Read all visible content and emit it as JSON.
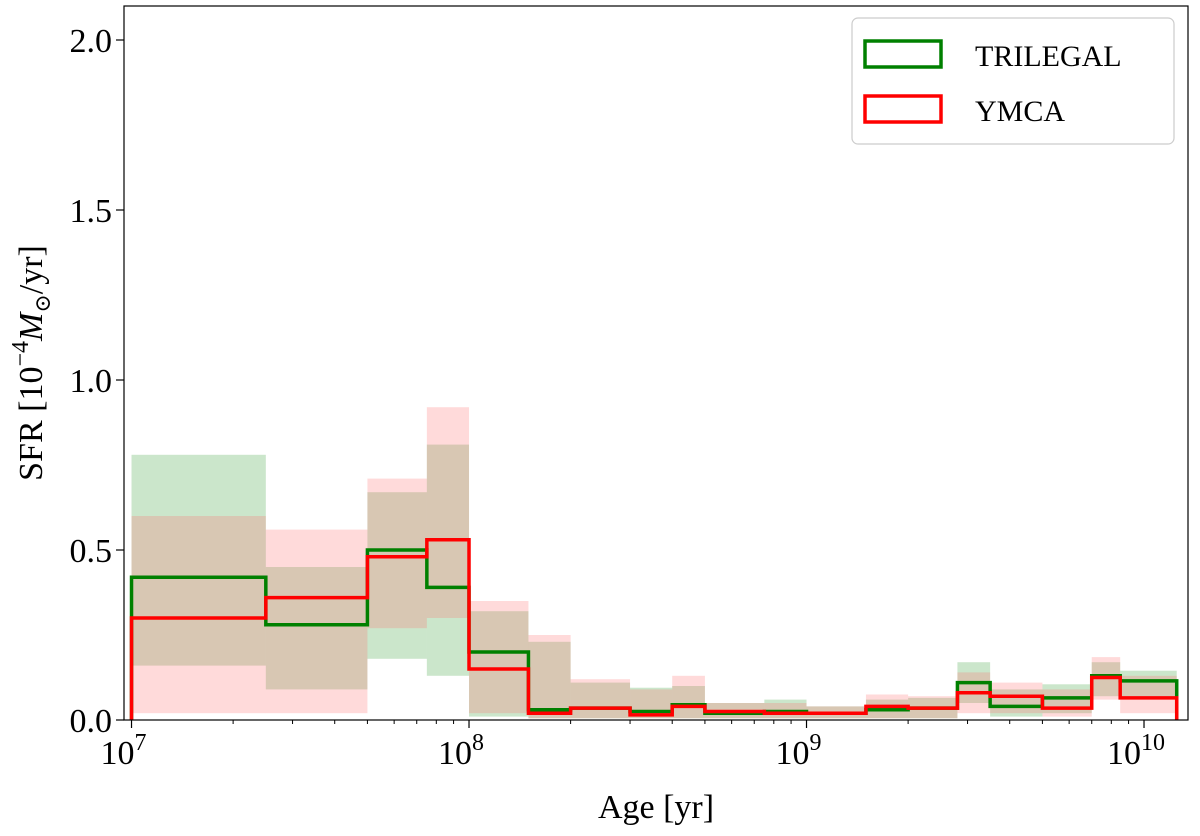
{
  "chart_data": {
    "type": "step",
    "xscale": "log",
    "xlim": [
      9500000,
      13500000000
    ],
    "ylim": [
      0,
      2.1
    ],
    "xlabel": "Age [yr]",
    "ylabel_prefix": "SFR [10",
    "ylabel_exp": "−4",
    "ylabel_mass": "M",
    "ylabel_sun": "⊙",
    "ylabel_suffix": "/yr]",
    "x_ticks": [
      {
        "value": 10000000,
        "base": "10",
        "exp": "7"
      },
      {
        "value": 100000000,
        "base": "10",
        "exp": "8"
      },
      {
        "value": 1000000000,
        "base": "10",
        "exp": "9"
      },
      {
        "value": 10000000000,
        "base": "10",
        "exp": "10"
      }
    ],
    "y_ticks": [
      {
        "value": 0.0,
        "label": "0.0"
      },
      {
        "value": 0.5,
        "label": "0.5"
      },
      {
        "value": 1.0,
        "label": "1.0"
      },
      {
        "value": 1.5,
        "label": "1.5"
      },
      {
        "value": 2.0,
        "label": "2.0"
      }
    ],
    "bin_edges": [
      10000000,
      25000000,
      50000000,
      75000000,
      100000000,
      150000000,
      200000000,
      300000000,
      400000000,
      500000000,
      750000000,
      1000000000,
      1500000000,
      2000000000,
      2800000000,
      3500000000,
      5000000000,
      7000000000,
      8500000000,
      12500000000
    ],
    "series": [
      {
        "name": "TRILEGAL",
        "color": "#008000",
        "fill_color": "#2e9b2e",
        "values": [
          0.42,
          0.28,
          0.5,
          0.39,
          0.2,
          0.03,
          0.035,
          0.025,
          0.045,
          0.02,
          0.025,
          0.02,
          0.03,
          0.035,
          0.11,
          0.04,
          0.065,
          0.13,
          0.115
        ],
        "lower": [
          0.16,
          0.09,
          0.18,
          0.13,
          0.01,
          0.005,
          0.005,
          0.005,
          0.005,
          0.005,
          0.005,
          0.005,
          0.005,
          0.005,
          0.05,
          0.01,
          0.02,
          0.07,
          0.07
        ],
        "upper": [
          0.78,
          0.45,
          0.67,
          0.81,
          0.32,
          0.23,
          0.11,
          0.095,
          0.1,
          0.05,
          0.06,
          0.04,
          0.06,
          0.065,
          0.17,
          0.09,
          0.105,
          0.17,
          0.145
        ]
      },
      {
        "name": "YMCA",
        "color": "#ff0000",
        "fill_color": "#ff6b6b",
        "values": [
          0.3,
          0.36,
          0.48,
          0.53,
          0.15,
          0.02,
          0.035,
          0.015,
          0.04,
          0.025,
          0.02,
          0.02,
          0.04,
          0.035,
          0.08,
          0.07,
          0.035,
          0.125,
          0.065
        ],
        "lower": [
          0.02,
          0.02,
          0.27,
          0.3,
          0.02,
          0.005,
          0.005,
          0.005,
          0.005,
          0.005,
          0.005,
          0.005,
          0.005,
          0.005,
          0.02,
          0.02,
          0.01,
          0.06,
          0.02
        ],
        "upper": [
          0.6,
          0.56,
          0.71,
          0.92,
          0.35,
          0.25,
          0.12,
          0.09,
          0.13,
          0.05,
          0.05,
          0.04,
          0.075,
          0.07,
          0.14,
          0.11,
          0.09,
          0.185,
          0.13
        ]
      }
    ],
    "legend_position": "top-right"
  }
}
